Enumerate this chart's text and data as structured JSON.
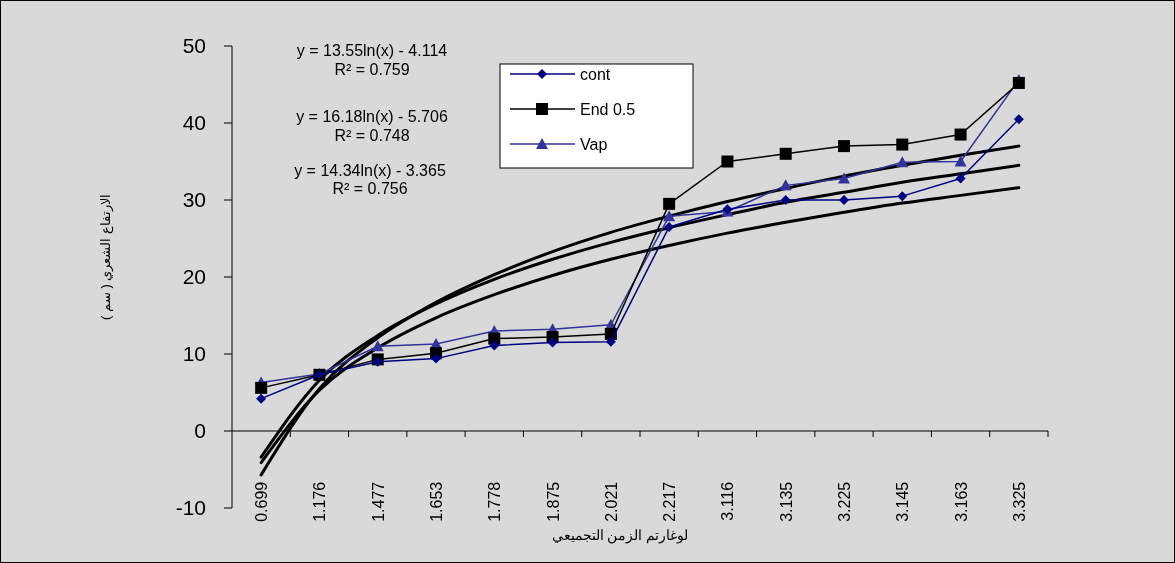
{
  "chart_data": {
    "type": "line",
    "xlabel": "لوغارتم الزمن التجميعي",
    "ylabel": "الارتفاع الشعري ( سم )",
    "categories": [
      "0.699",
      "1.176",
      "1.477",
      "1.653",
      "1.778",
      "1.875",
      "2.021",
      "2.217",
      "3.116",
      "3.135",
      "3.225",
      "3.145",
      "3.163",
      "3.325"
    ],
    "ylim": [
      -10,
      50
    ],
    "yticks": [
      -10,
      0,
      10,
      20,
      30,
      40,
      50
    ],
    "legend": "top",
    "series": [
      {
        "name": "cont",
        "color": "#000080",
        "marker": "diamond",
        "values": [
          4.2,
          7.3,
          9.0,
          9.4,
          11.1,
          11.5,
          11.6,
          26.5,
          28.8,
          30.0,
          30.0,
          30.5,
          32.8,
          40.5
        ]
      },
      {
        "name": "End 0.5",
        "color": "#000000",
        "marker": "square",
        "values": [
          5.6,
          7.3,
          9.3,
          10.1,
          12.0,
          12.2,
          12.6,
          29.5,
          35.0,
          36.0,
          37.0,
          37.2,
          38.5,
          45.2
        ]
      },
      {
        "name": "Vap",
        "color": "#333399",
        "marker": "triangle",
        "values": [
          6.3,
          7.4,
          11.0,
          11.3,
          13.0,
          13.2,
          13.8,
          27.9,
          28.5,
          31.9,
          32.8,
          34.9,
          35.0,
          45.6
        ]
      },
      {
        "type": "line",
        "color": "#000000",
        "marker": "none",
        "values": [
          -4.1,
          5.3,
          10.8,
          14.7,
          17.7,
          20.2,
          22.3,
          24.1,
          25.7,
          27.1,
          28.4,
          29.6,
          30.6,
          31.6
        ]
      },
      {
        "type": "line",
        "color": "#000000",
        "marker": "none",
        "values": [
          -5.7,
          5.5,
          12.1,
          16.7,
          20.3,
          23.3,
          25.8,
          27.9,
          29.8,
          31.5,
          33.1,
          34.5,
          35.8,
          37.0
        ]
      },
      {
        "type": "line",
        "color": "#000000",
        "marker": "none",
        "values": [
          -3.4,
          6.6,
          12.4,
          16.5,
          19.7,
          22.3,
          24.5,
          26.4,
          28.1,
          29.7,
          31.0,
          32.3,
          33.4,
          34.5
        ]
      }
    ],
    "annotations": [
      "y = 13.55ln(x) - 4.114",
      "R² = 0.759",
      "y = 16.18ln(x) - 5.706",
      "R² = 0.748",
      "y = 14.34ln(x) - 3.365",
      "R² = 0.756"
    ]
  }
}
